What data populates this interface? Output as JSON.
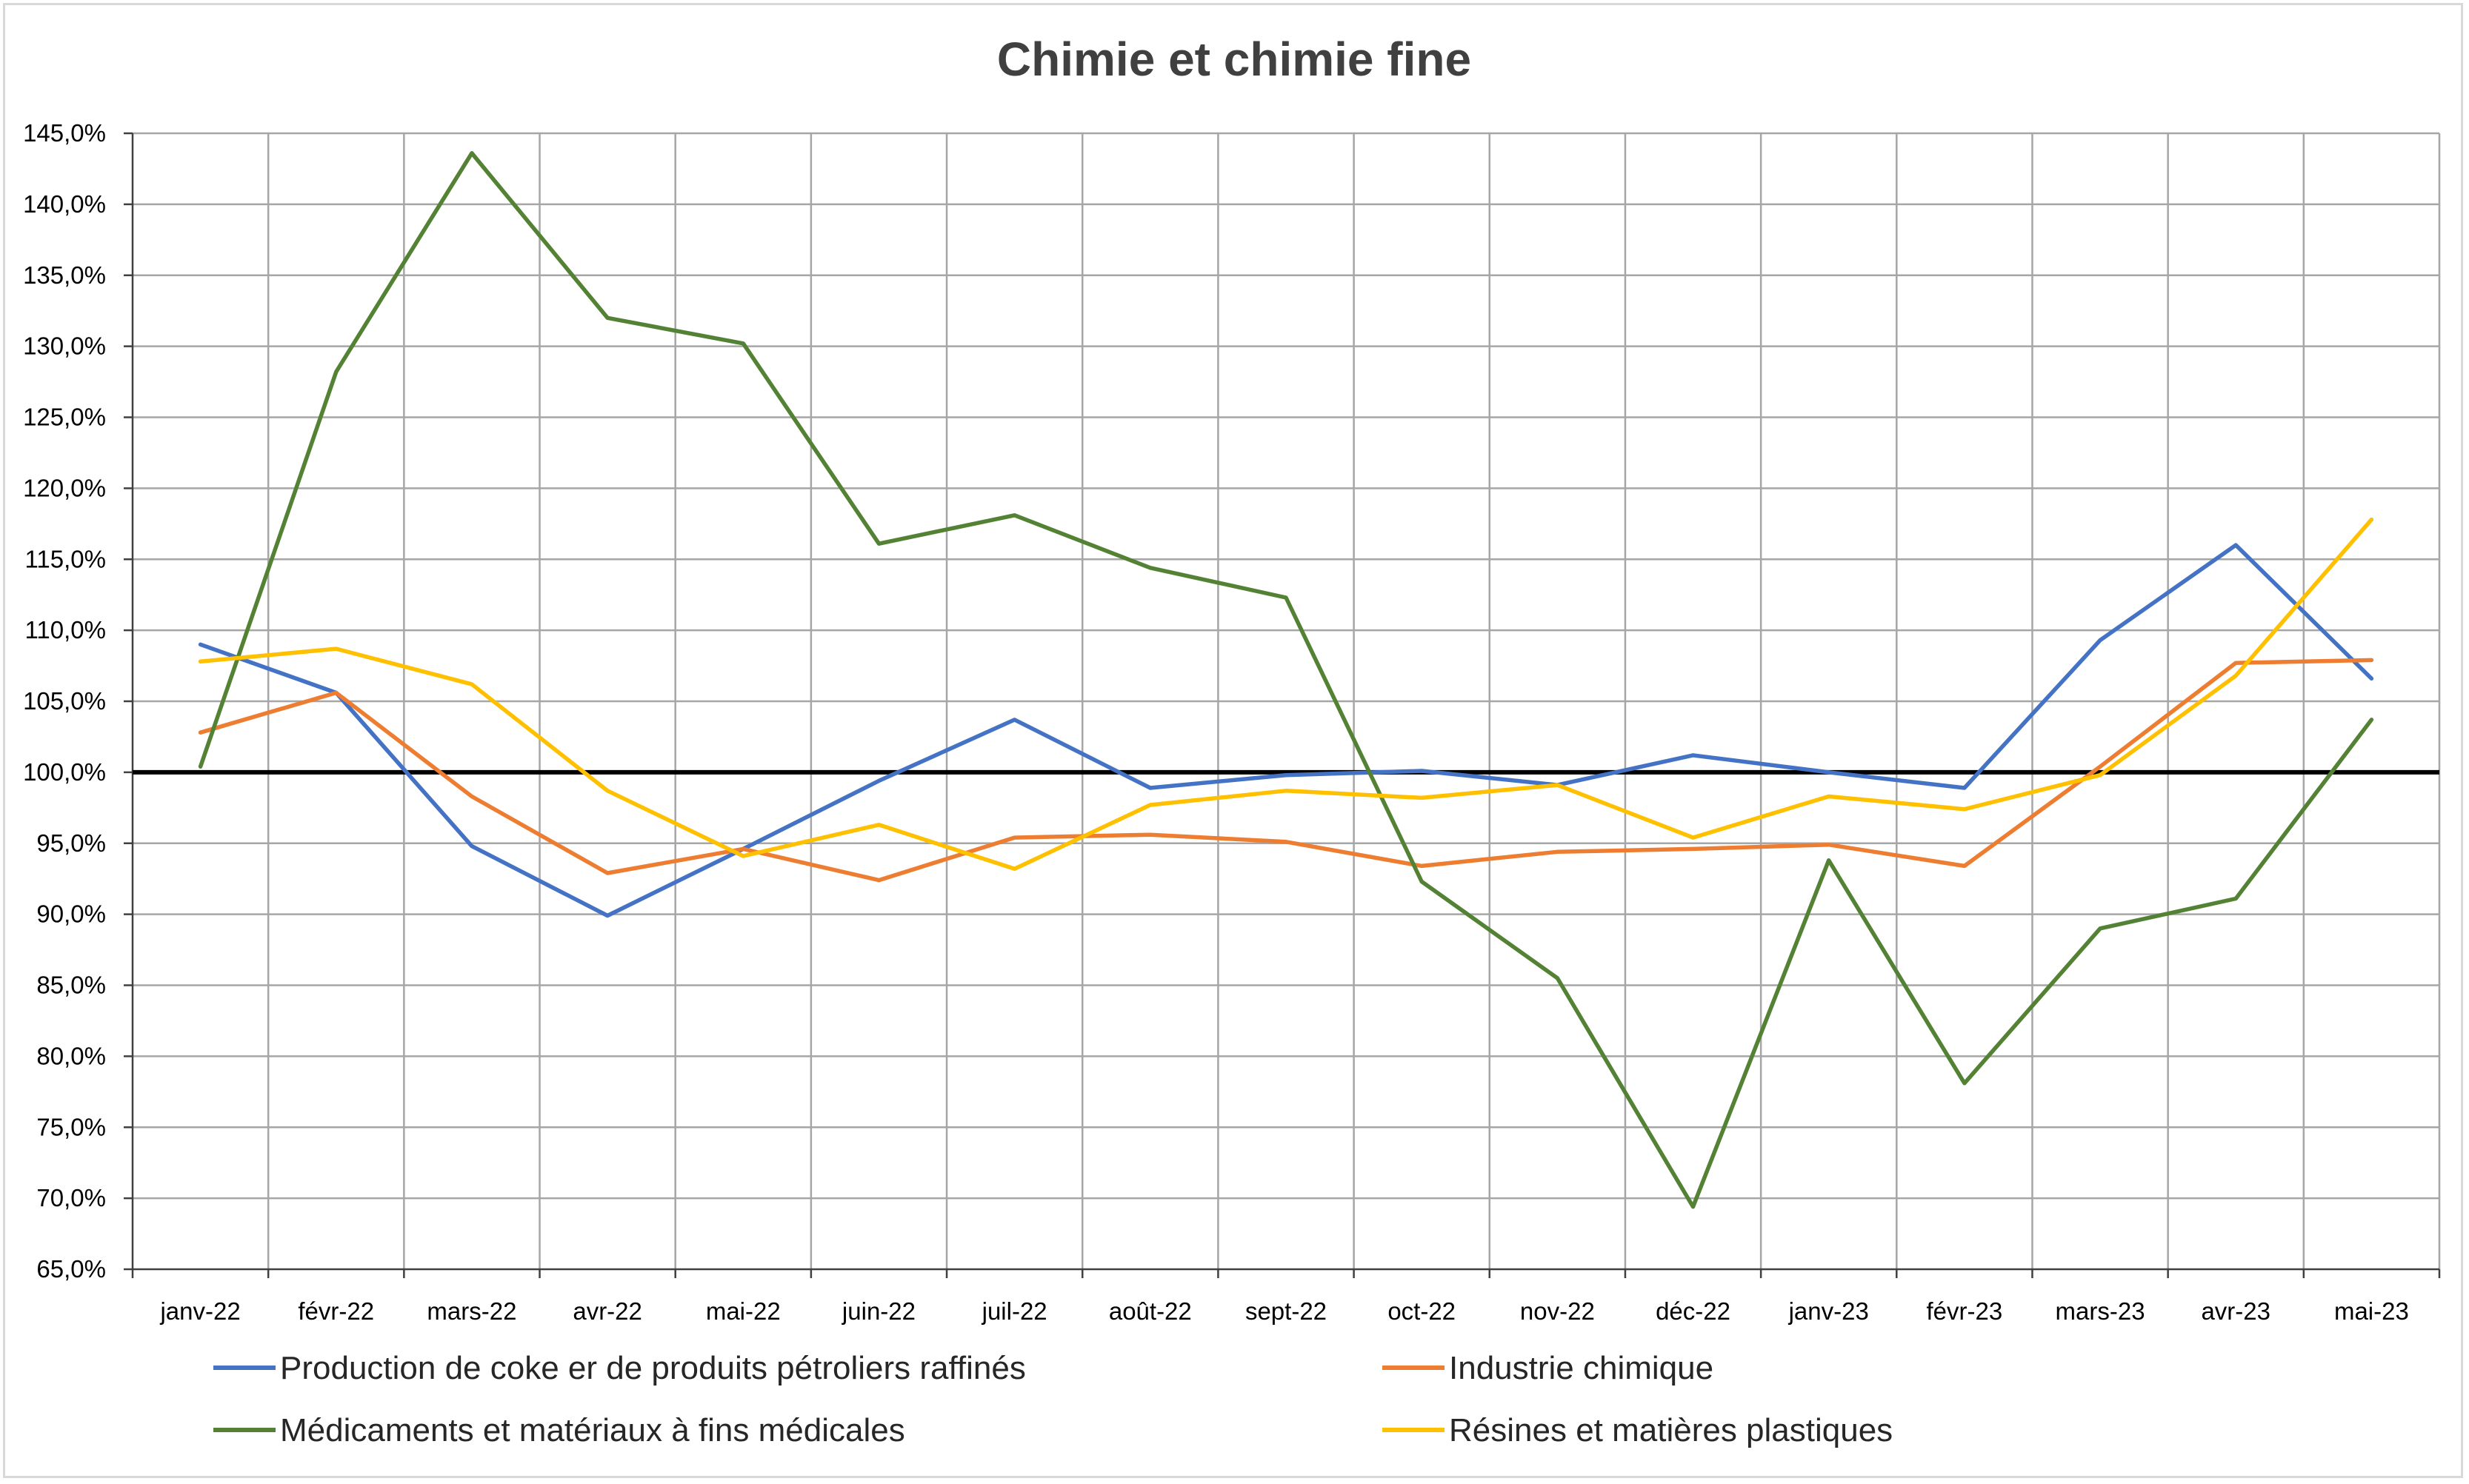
{
  "chart_data": {
    "type": "line",
    "title": "Chimie et chimie fine",
    "xlabel": "",
    "ylabel": "",
    "categories": [
      "janv-22",
      "févr-22",
      "mars-22",
      "avr-22",
      "mai-22",
      "juin-22",
      "juil-22",
      "août-22",
      "sept-22",
      "oct-22",
      "nov-22",
      "déc-22",
      "janv-23",
      "févr-23",
      "mars-23",
      "avr-23",
      "mai-23"
    ],
    "ylim": [
      65,
      145
    ],
    "y_step": 5,
    "y_ticks": [
      "65,0%",
      "70,0%",
      "75,0%",
      "80,0%",
      "85,0%",
      "90,0%",
      "95,0%",
      "100,0%",
      "105,0%",
      "110,0%",
      "115,0%",
      "120,0%",
      "125,0%",
      "130,0%",
      "135,0%",
      "140,0%",
      "145,0%"
    ],
    "reference_line": 100,
    "grid": "on",
    "legend_position": "bottom",
    "series": [
      {
        "name": "Production de coke er de produits pétroliers raffinés",
        "color": "#4472c4",
        "values": [
          109.0,
          105.6,
          94.8,
          89.9,
          94.6,
          99.4,
          103.7,
          98.9,
          99.8,
          100.1,
          99.1,
          101.2,
          100.0,
          98.9,
          109.3,
          116.0,
          106.6
        ]
      },
      {
        "name": "Industrie chimique",
        "color": "#ed7d31",
        "values": [
          102.8,
          105.6,
          98.3,
          92.9,
          94.6,
          92.4,
          95.4,
          95.6,
          95.1,
          93.4,
          94.4,
          94.6,
          94.9,
          93.4,
          100.4,
          107.7,
          107.9
        ]
      },
      {
        "name": "Médicaments et matériaux à fins médicales",
        "color": "#548235",
        "values": [
          100.4,
          128.2,
          143.6,
          132.0,
          130.2,
          116.1,
          118.1,
          114.4,
          112.3,
          92.3,
          85.5,
          69.4,
          93.8,
          78.1,
          89.0,
          91.1,
          103.7
        ]
      },
      {
        "name": "Résines et matières plastiques",
        "color": "#ffc000",
        "values": [
          107.8,
          108.7,
          106.2,
          98.7,
          94.1,
          96.3,
          93.2,
          97.7,
          98.7,
          98.2,
          99.1,
          95.4,
          98.3,
          97.4,
          99.8,
          106.8,
          117.8
        ]
      }
    ]
  }
}
